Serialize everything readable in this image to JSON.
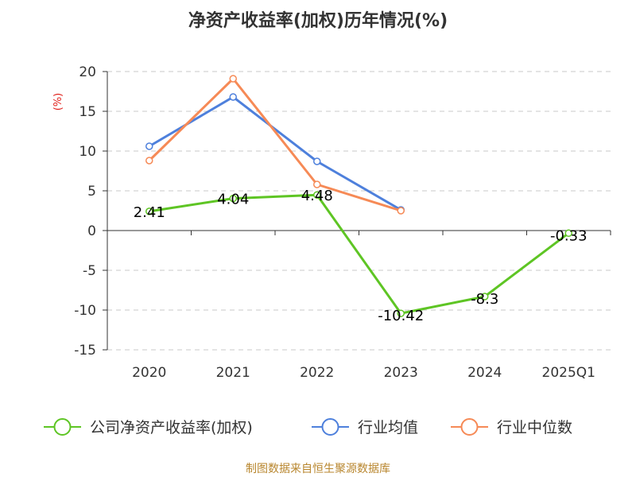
{
  "chart_data": {
    "type": "line",
    "title": "净资产收益率(加权)历年情况(%)",
    "ylabel": "(%)",
    "xlabel": "",
    "categories": [
      "2020",
      "2021",
      "2022",
      "2023",
      "2024",
      "2025Q1"
    ],
    "ylim": [
      -15,
      20
    ],
    "yticks": [
      20,
      15,
      10,
      5,
      0,
      -5,
      -10,
      -15
    ],
    "grid": true,
    "legend_position": "bottom",
    "series": [
      {
        "name": "公司净资产收益率(加权)",
        "color": "#5ec524",
        "values": [
          2.41,
          4.04,
          4.48,
          -10.42,
          -8.3,
          -0.33
        ],
        "labels": [
          "2.41",
          "4.04",
          "4.48",
          "-10.42",
          "-8.3",
          "-0.33"
        ]
      },
      {
        "name": "行业均值",
        "color": "#4e80dc",
        "values": [
          10.6,
          16.8,
          8.7,
          2.6,
          null,
          null
        ]
      },
      {
        "name": "行业中位数",
        "color": "#f68a56",
        "values": [
          8.8,
          19.1,
          5.8,
          2.5,
          null,
          null
        ]
      }
    ]
  },
  "footer": "制图数据来自恒生聚源数据库"
}
